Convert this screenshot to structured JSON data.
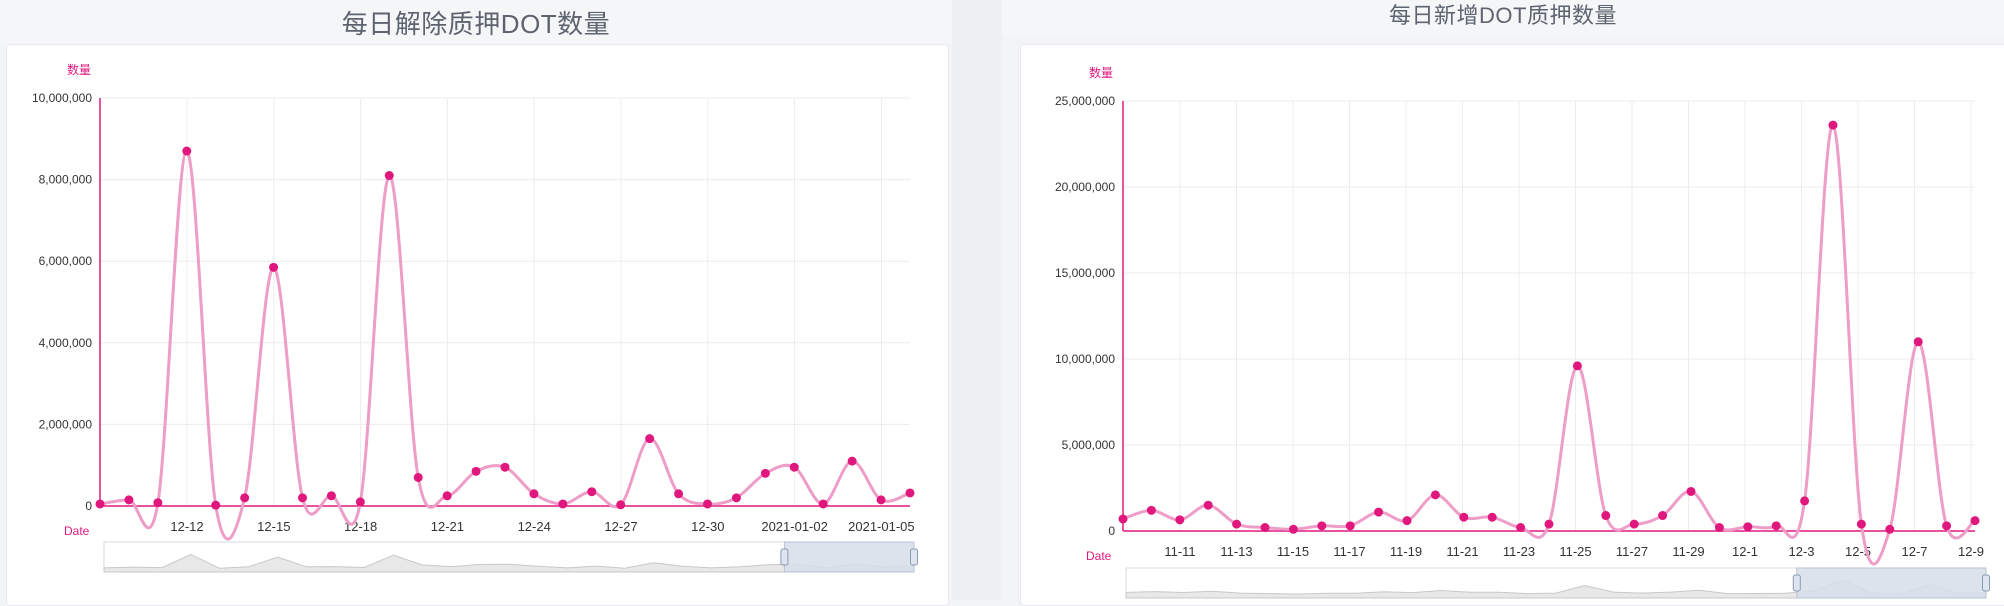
{
  "colors": {
    "accent": "#e0187e",
    "line": "#ee9cc8",
    "grid": "#ececec",
    "zoom_fill": "#d6dee9"
  },
  "left_panel": {
    "title": "每日解除质押DOT数量"
  },
  "right_panel": {
    "title": "每日新增DOT质押数量"
  },
  "chart_data": [
    {
      "type": "line",
      "title": "每日解除质押DOT数量",
      "ylabel": "数量",
      "xlabel": "Date",
      "ylim": [
        0,
        10000000
      ],
      "yticks": [
        "0",
        "2,000,000",
        "4,000,000",
        "6,000,000",
        "8,000,000",
        "10,000,000"
      ],
      "xtick_labels": [
        "12-12",
        "12-15",
        "12-18",
        "12-21",
        "12-24",
        "12-27",
        "12-30",
        "2021-01-02",
        "2021-01-05"
      ],
      "grid": true,
      "smooth": true,
      "categories": [
        "12-09",
        "12-10",
        "12-11",
        "12-12",
        "12-13",
        "12-14",
        "12-15",
        "12-16",
        "12-17",
        "12-18",
        "12-19",
        "12-20",
        "12-21",
        "12-22",
        "12-23",
        "12-24",
        "12-25",
        "12-26",
        "12-27",
        "12-28",
        "12-29",
        "12-30",
        "12-31",
        "2021-01-01",
        "2021-01-02",
        "2021-01-03",
        "2021-01-04",
        "2021-01-05",
        "2021-01-06"
      ],
      "values": [
        50000,
        150000,
        80000,
        8700000,
        20000,
        200000,
        5850000,
        200000,
        250000,
        100000,
        8100000,
        700000,
        250000,
        850000,
        950000,
        300000,
        50000,
        350000,
        30000,
        1650000,
        300000,
        50000,
        200000,
        800000,
        950000,
        50000,
        1100000,
        150000,
        320000
      ],
      "zoom_range": [
        0.84,
        1.0
      ]
    },
    {
      "type": "line",
      "title": "每日新增DOT质押数量",
      "ylabel": "数量",
      "xlabel": "Date",
      "ylim": [
        0,
        25000000
      ],
      "yticks": [
        "0",
        "5,000,000",
        "10,000,000",
        "15,000,000",
        "20,000,000",
        "25,000,000"
      ],
      "xtick_labels": [
        "11-11",
        "11-13",
        "11-15",
        "11-17",
        "11-19",
        "11-21",
        "11-23",
        "11-25",
        "11-27",
        "11-29",
        "12-1",
        "12-3",
        "12-5",
        "12-7",
        "12-9"
      ],
      "grid": true,
      "smooth": true,
      "categories": [
        "11-9",
        "11-10",
        "11-11",
        "11-12",
        "11-13",
        "11-14",
        "11-15",
        "11-16",
        "11-17",
        "11-18",
        "11-19",
        "11-20",
        "11-21",
        "11-22",
        "11-23",
        "11-24",
        "11-25",
        "11-26",
        "11-27",
        "11-28",
        "11-29",
        "11-30",
        "12-1",
        "12-2",
        "12-3",
        "12-4",
        "12-5",
        "12-6",
        "12-7",
        "12-8",
        "12-9"
      ],
      "values": [
        700000,
        1200000,
        650000,
        1500000,
        400000,
        200000,
        100000,
        300000,
        300000,
        1100000,
        600000,
        2100000,
        800000,
        800000,
        200000,
        400000,
        9600000,
        900000,
        400000,
        900000,
        2300000,
        200000,
        250000,
        300000,
        1750000,
        23600000,
        400000,
        100000,
        11000000,
        300000,
        600000
      ],
      "zoom_range": [
        0.78,
        1.0
      ]
    }
  ]
}
